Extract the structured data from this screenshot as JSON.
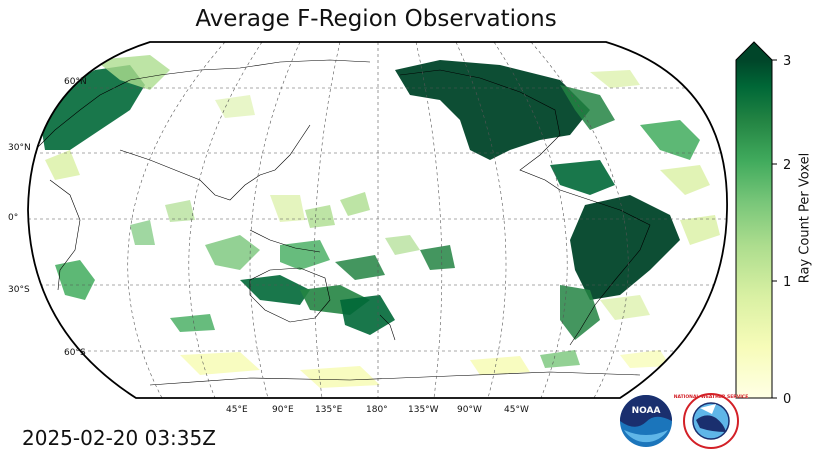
{
  "title": "Average F-Region Observations",
  "timestamp": "2025-02-20 03:35Z",
  "colorbar": {
    "label": "Ray Count Per Voxel",
    "ticks": [
      "0",
      "1",
      "2",
      "3"
    ],
    "colors": [
      "#ffffe5",
      "#f7fcb9",
      "#d9f0a3",
      "#addd8e",
      "#78c679",
      "#41ab5d",
      "#238443",
      "#006837",
      "#004529"
    ]
  },
  "map": {
    "projection": "robinson",
    "central_longitude": 180,
    "lat_labels": [
      "60°N",
      "30°N",
      "0°",
      "30°S",
      "60°S"
    ],
    "lon_labels": [
      "45°E",
      "90°E",
      "135°E",
      "180°",
      "135°W",
      "90°W",
      "45°W"
    ],
    "grid": true
  },
  "logos": {
    "noaa": "NOAA",
    "nws": "NATIONAL WEATHER SERVICE"
  }
}
